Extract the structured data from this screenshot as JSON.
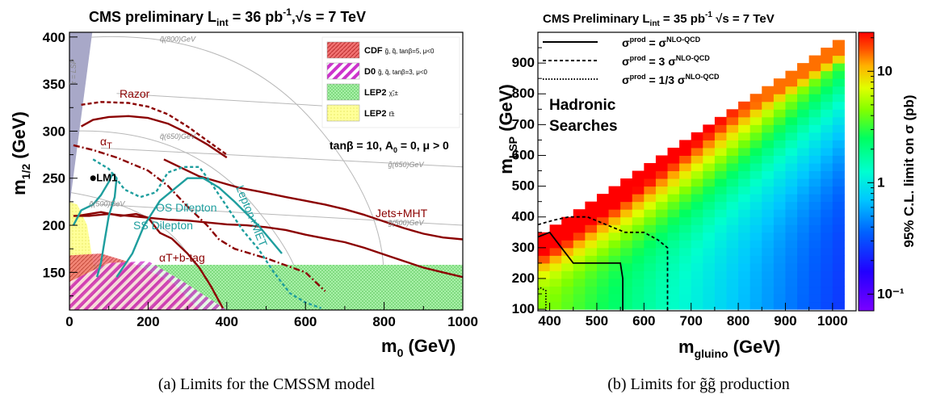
{
  "chart_data": [
    {
      "type": "line",
      "title": "CMS preliminary    L",
      "title_sub": "int",
      "title_rest": " = 36 pb",
      "title_sup": "-1",
      "title_end": ",√s = 7 TeV",
      "xlabel": "m",
      "xlabel_sub": "0",
      "xlabel_unit": " (GeV)",
      "ylabel": "m",
      "ylabel_sub": "1/2",
      "ylabel_unit": " (GeV)",
      "xlim": [
        0,
        1000
      ],
      "ylim": [
        110,
        405
      ],
      "xticks": [
        "0",
        "200",
        "400",
        "600",
        "800",
        "1000"
      ],
      "yticks": [
        "150",
        "200",
        "250",
        "300",
        "350",
        "400"
      ],
      "params_text": "tanβ = 10, A",
      "params_sub": "0",
      "params_rest": " = 0, μ > 0",
      "lm1_label": "LM1",
      "lm1_point": [
        60,
        250
      ],
      "lsp_label": "τ̃ = LSP",
      "legend": [
        {
          "label": "CDF",
          "detail": "g̃, q̃, tanβ=5, μ<0",
          "color": "#d94040"
        },
        {
          "label": "D0",
          "detail": "g̃, q̃, tanβ=3, μ<0",
          "color": "#cc33cc"
        },
        {
          "label": "LEP2",
          "detail": "χ̃₁±",
          "color": "#66dd66"
        },
        {
          "label": "LEP2",
          "detail": "ℓ̃±",
          "color": "#ffff88"
        }
      ],
      "iso_labels": [
        {
          "text": "q̃(800)GeV",
          "x": 230,
          "y": 395
        },
        {
          "text": "q̃(650)GeV",
          "x": 230,
          "y": 292
        },
        {
          "text": "g̃(650)GeV",
          "x": 810,
          "y": 262
        },
        {
          "text": "g̃(500)GeV",
          "x": 810,
          "y": 200
        },
        {
          "text": "q̃(500)GeV",
          "x": 50,
          "y": 220
        }
      ],
      "series": [
        {
          "name": "Razor",
          "color": "#8b0000",
          "dash": "",
          "x": [
            30,
            60,
            100,
            150,
            200,
            250,
            300,
            350,
            400
          ],
          "y": [
            305,
            312,
            315,
            316,
            314,
            308,
            298,
            286,
            272
          ]
        },
        {
          "name": "Razor",
          "color": "#8b0000",
          "dash": "5,3",
          "x": [
            30,
            80,
            150,
            200,
            250,
            300,
            350,
            400
          ],
          "y": [
            328,
            331,
            330,
            326,
            318,
            305,
            290,
            275
          ]
        },
        {
          "name": "Jets+MHT",
          "color": "#8b0000",
          "dash": "",
          "x": [
            240,
            280,
            330,
            380,
            430,
            480,
            550,
            600,
            650,
            700,
            750,
            800,
            850,
            900,
            950,
            1000
          ],
          "y": [
            270,
            262,
            252,
            246,
            240,
            236,
            230,
            226,
            222,
            217,
            211,
            204,
            197,
            191,
            187,
            185
          ]
        },
        {
          "name": "αT",
          "color": "#8b0000",
          "dash": "",
          "x": [
            10,
            50,
            100,
            150,
            200,
            250,
            300,
            350,
            400,
            450,
            500,
            550,
            600,
            650,
            700,
            750,
            800,
            850,
            900,
            950,
            1000
          ],
          "y": [
            210,
            210,
            212,
            210,
            208,
            206,
            205,
            203,
            201,
            200,
            198,
            195,
            190,
            186,
            182,
            176,
            169,
            162,
            155,
            150,
            145
          ]
        },
        {
          "name": "αT",
          "color": "#8b0000",
          "dash": "8,3,2,3",
          "x": [
            10,
            60,
            120,
            200,
            250,
            300,
            350,
            380,
            420,
            500,
            600,
            650
          ],
          "y": [
            285,
            280,
            272,
            258,
            242,
            220,
            200,
            185,
            175,
            165,
            150,
            130
          ]
        },
        {
          "name": "αT+b-tag",
          "color": "#8b0000",
          "dash": "",
          "x": [
            20,
            80,
            130,
            170,
            200,
            215,
            230,
            260,
            300,
            330,
            360,
            390
          ],
          "y": [
            210,
            214,
            210,
            212,
            208,
            200,
            192,
            186,
            170,
            155,
            135,
            112
          ]
        },
        {
          "name": "OS Dilepton",
          "color": "#1e9e9e",
          "dash": "",
          "x": [
            10,
            30,
            60,
            80,
            100,
            110,
            120,
            115,
            100,
            90,
            80,
            70
          ],
          "y": [
            200,
            216,
            222,
            232,
            246,
            255,
            250,
            230,
            210,
            185,
            160,
            145
          ]
        },
        {
          "name": "SS Dilepton",
          "color": "#1e9e9e",
          "dash": "",
          "x": [
            120,
            160,
            190,
            230,
            300,
            340,
            380,
            420,
            480,
            540
          ],
          "y": [
            145,
            170,
            200,
            226,
            250,
            250,
            240,
            225,
            200,
            170
          ]
        },
        {
          "name": "Lepton+MET",
          "color": "#1e9e9e",
          "dash": "4,3",
          "x": [
            60,
            100,
            140,
            180,
            220,
            250,
            290,
            330,
            360,
            400,
            440,
            480,
            520,
            560,
            600,
            640
          ],
          "y": [
            270,
            260,
            238,
            230,
            235,
            256,
            262,
            262,
            245,
            220,
            195,
            175,
            150,
            128,
            118,
            112
          ]
        }
      ]
    },
    {
      "type": "heatmap",
      "title": "CMS Preliminary   L",
      "title_sub": "int",
      "title_rest": " = 35 pb",
      "title_sup": "-1",
      "title_end": "   √s = 7 TeV",
      "xlabel": "m",
      "xlabel_sub": "gluino",
      "xlabel_unit": " (GeV)",
      "ylabel": "m",
      "ylabel_sub": "LSP",
      "ylabel_unit": " (GeV)",
      "zlabel": "95% C.L. limit on σ (pb)",
      "xlim": [
        375,
        1050
      ],
      "ylim": [
        95,
        1000
      ],
      "xticks": [
        "400",
        "500",
        "600",
        "700",
        "800",
        "900",
        "1000"
      ],
      "yticks": [
        "100",
        "200",
        "300",
        "400",
        "500",
        "600",
        "700",
        "800",
        "900"
      ],
      "zticks": [
        "10",
        "1",
        "10⁻¹"
      ],
      "zlim_log10": [
        -1.15,
        1.35
      ],
      "annotation_line1": "Hadronic",
      "annotation_line2": "Searches",
      "legend": [
        {
          "label": "σ",
          "sup": "prod",
          "rest": " = σ",
          "sup2": "NLO-QCD",
          "dash": ""
        },
        {
          "label": "σ",
          "sup": "prod",
          "rest": " = 3 σ",
          "sup2": "NLO-QCD",
          "dash": "4,3"
        },
        {
          "label": "σ",
          "sup": "prod",
          "rest": " = 1/3 σ",
          "sup2": "NLO-QCD",
          "dash": "1.5,2"
        }
      ],
      "contours": [
        {
          "name": "σ prod = σ NLO-QCD",
          "dash": "",
          "x": [
            375,
            400,
            425,
            450,
            550,
            555,
            555
          ],
          "y": [
            335,
            350,
            300,
            250,
            250,
            200,
            95
          ]
        },
        {
          "name": "σ prod = 3 σ NLO-QCD",
          "dash": "4,3",
          "x": [
            375,
            410,
            440,
            480,
            520,
            560,
            600,
            630,
            650,
            650,
            650
          ],
          "y": [
            375,
            390,
            400,
            400,
            375,
            350,
            350,
            325,
            300,
            200,
            95
          ]
        },
        {
          "name": "σ prod = 1/3 σ NLO-QCD",
          "dash": "1.5,2",
          "x": [
            375,
            380,
            392,
            392
          ],
          "y": [
            165,
            170,
            160,
            95
          ]
        }
      ]
    }
  ],
  "captions": {
    "a": "(a) Limits for the CMSSM model",
    "b": "(b) Limits for g̃g̃ production"
  }
}
